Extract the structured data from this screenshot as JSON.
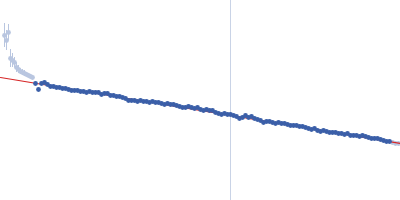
{
  "chart_data": {
    "type": "scatter",
    "xlim": [
      0,
      400
    ],
    "ylim": [
      0,
      200
    ],
    "tick_labels": false,
    "series": [
      {
        "type": "rule",
        "color": "#c9d3e6",
        "x": [
          230
        ]
      },
      {
        "type": "scatter",
        "color": "#b9c6e0",
        "marker": "circle",
        "x": [
          4,
          6,
          8,
          10,
          12,
          14,
          16,
          18,
          20,
          22,
          24,
          26,
          28,
          30,
          32,
          392,
          395,
          398
        ],
        "values": [
          165,
          160,
          168,
          142,
          140,
          138,
          133,
          131,
          129,
          128,
          127,
          126,
          125,
          124,
          123,
          58,
          57,
          57
        ],
        "errors": [
          12,
          10,
          8,
          9,
          7,
          5,
          5,
          4,
          3,
          3,
          3,
          2,
          2,
          2,
          2,
          2,
          2,
          2
        ]
      },
      {
        "type": "line",
        "color": "#d62728",
        "x": [
          0,
          400
        ],
        "values": [
          123,
          57
        ]
      },
      {
        "type": "scatter",
        "color": "#3b5fa8",
        "marker": "circle",
        "x": [
          35,
          38,
          41,
          44,
          47,
          50,
          53,
          56,
          59,
          62,
          65,
          68,
          71,
          74,
          77,
          80,
          83,
          86,
          89,
          92,
          95,
          98,
          101,
          104,
          107,
          110,
          113,
          116,
          119,
          122,
          125,
          128,
          131,
          134,
          137,
          140,
          143,
          146,
          149,
          152,
          155,
          158,
          161,
          164,
          167,
          170,
          173,
          176,
          179,
          182,
          185,
          188,
          191,
          194,
          197,
          200,
          203,
          206,
          209,
          212,
          215,
          218,
          221,
          224,
          227,
          230,
          233,
          236,
          239,
          242,
          245,
          248,
          251,
          254,
          257,
          260,
          263,
          266,
          269,
          272,
          275,
          278,
          281,
          284,
          287,
          290,
          293,
          296,
          299,
          302,
          305,
          308,
          311,
          314,
          317,
          320,
          323,
          326,
          329,
          332,
          335,
          338,
          341,
          344,
          347,
          350,
          353,
          356,
          359,
          362,
          365,
          368,
          371,
          374,
          377,
          380,
          383,
          386,
          389
        ],
        "values": [
          117,
          111,
          117,
          118,
          116,
          114,
          114,
          113,
          113,
          112,
          112,
          111,
          110,
          110,
          110,
          109,
          109,
          108,
          109,
          108,
          108,
          108,
          106,
          107,
          107,
          105,
          105,
          104,
          104,
          103,
          102,
          100,
          100,
          100,
          99,
          100,
          99,
          99,
          98,
          99,
          98,
          98,
          97,
          96,
          97,
          96,
          96,
          95,
          94,
          93,
          93,
          94,
          93,
          92,
          93,
          91,
          90,
          91,
          90,
          90,
          88,
          87,
          86,
          87,
          86,
          86,
          85,
          84,
          82,
          83,
          85,
          83,
          84,
          82,
          81,
          80,
          78,
          79,
          79,
          78,
          77,
          78,
          77,
          77,
          76,
          75,
          75,
          75,
          74,
          74,
          73,
          72,
          71,
          72,
          70,
          69,
          70,
          69,
          68,
          68,
          68,
          67,
          67,
          66,
          67,
          65,
          65,
          65,
          64,
          65,
          64,
          63,
          62,
          62,
          62,
          61,
          60,
          59,
          59
        ]
      }
    ]
  }
}
